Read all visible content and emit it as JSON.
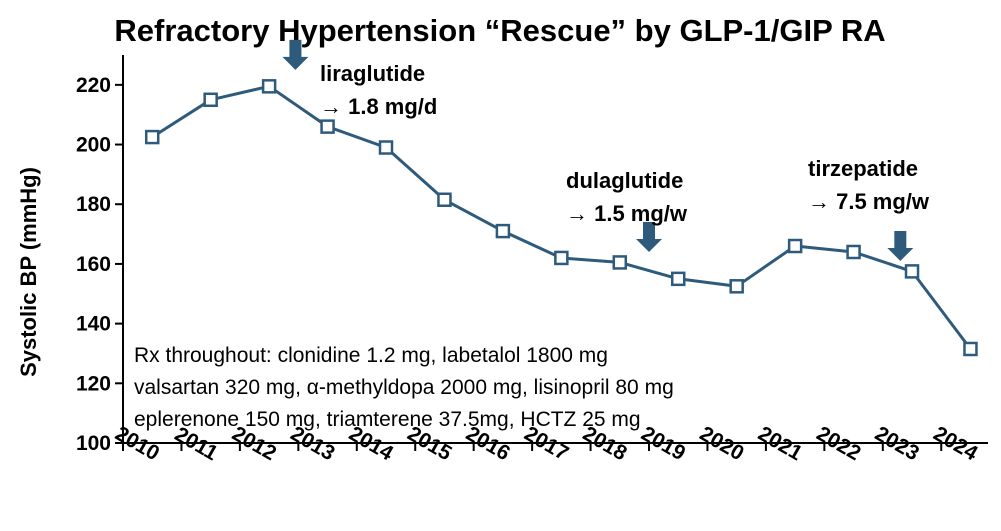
{
  "chart_data": {
    "type": "line",
    "title": "Refractory Hypertension “Rescue” by GLP-1/GIP RA",
    "xlabel": "",
    "ylabel": "Systolic BP (mmHg)",
    "ylim": [
      100,
      230
    ],
    "yticks": [
      100,
      120,
      140,
      160,
      180,
      200,
      220
    ],
    "xlim": [
      2010,
      2024.8
    ],
    "xticks": [
      "2010",
      "2011",
      "2012",
      "2013",
      "2014",
      "2015",
      "2016",
      "2017",
      "2018",
      "2019",
      "2020",
      "2021",
      "2022",
      "2023",
      "2024"
    ],
    "grid": false,
    "series": [
      {
        "name": "Systolic BP",
        "color": "#2e5a7c",
        "marker": "open-square",
        "x": [
          2010.5,
          2011.5,
          2012.5,
          2013.5,
          2014.5,
          2015.5,
          2016.5,
          2017.5,
          2018.5,
          2019.5,
          2020.5,
          2021.5,
          2022.5,
          2023.5,
          2024.5
        ],
        "y": [
          202.5,
          215,
          219.5,
          206,
          199,
          181.5,
          171,
          162,
          160.5,
          155,
          152.5,
          166,
          164,
          157.5,
          131.5
        ]
      }
    ],
    "annotations": [
      {
        "id": "lira",
        "line1": "liraglutide",
        "line2": "→ 1.8 mg/d",
        "arrow_x": 2012.95,
        "arrow_y": 225
      },
      {
        "id": "dula",
        "line1": "dulaglutide",
        "line2": "→ 1.5 mg/w",
        "arrow_x": 2019.0,
        "arrow_y": 164
      },
      {
        "id": "tirz",
        "line1": "tirzepatide",
        "line2": "→ 7.5 mg/w",
        "arrow_x": 2023.3,
        "arrow_y": 161
      }
    ],
    "rx_note": [
      "Rx throughout:  clonidine 1.2 mg, labetalol 1800 mg",
      "valsartan 320 mg, α-methyldopa 2000 mg, lisinopril 80 mg",
      "eplerenone 150 mg, triamterene 37.5mg, HCTZ 25 mg"
    ],
    "arrow_color": "#2e5a7c",
    "axis_color": "#000000"
  }
}
